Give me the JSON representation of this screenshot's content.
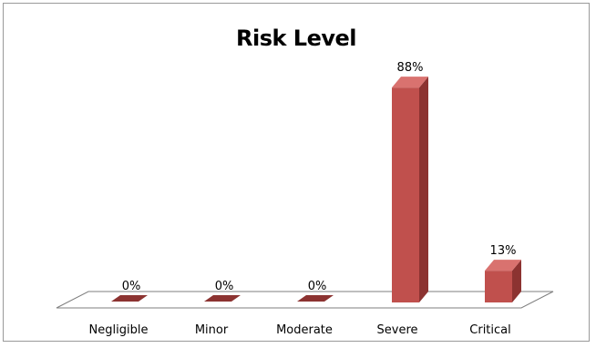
{
  "chart_data": {
    "type": "bar",
    "title": "Risk Level",
    "categories": [
      "Negligible",
      "Minor",
      "Moderate",
      "Severe",
      "Critical"
    ],
    "values": [
      0,
      0,
      0,
      88,
      13
    ],
    "data_labels": [
      "0%",
      "0%",
      "0%",
      "88%",
      "13%"
    ],
    "ylim": [
      0,
      100
    ],
    "xlabel": "",
    "ylabel": "",
    "grid": false,
    "legend": "none",
    "style": "3d-column"
  },
  "colors": {
    "bar_front": "#c0504d",
    "bar_side": "#8c3331",
    "bar_top": "#d9726f",
    "floor_stroke": "#7f7f7f",
    "frame_border": "#9a9a9a"
  }
}
